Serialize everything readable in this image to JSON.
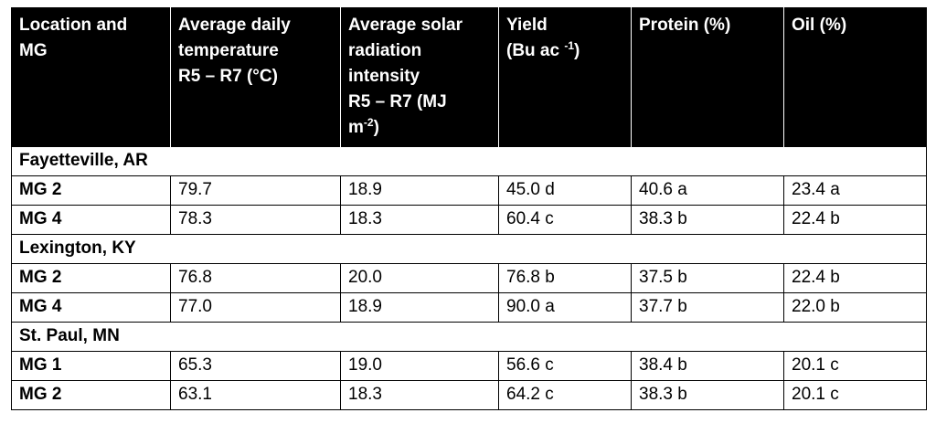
{
  "headers": {
    "location": [
      "Location and",
      "MG"
    ],
    "temperature": [
      "Average daily",
      "temperature",
      "R5 – R7 (°C)"
    ],
    "radiation": [
      "Average solar",
      "radiation",
      "intensity",
      "R5 – R7 (MJ",
      "m",
      "-2",
      ")"
    ],
    "yield": [
      "Yield",
      "(Bu ac ",
      "-1",
      ")"
    ],
    "protein": "Protein (%)",
    "oil": "Oil (%)"
  },
  "groups": [
    {
      "location": "Fayetteville, AR",
      "rows": [
        {
          "mg": "MG 2",
          "temperature": "79.7",
          "radiation": "18.9",
          "yield": "45.0 d",
          "protein": "40.6 a",
          "oil": "23.4 a"
        },
        {
          "mg": "MG 4",
          "temperature": "78.3",
          "radiation": "18.3",
          "yield": "60.4 c",
          "protein": "38.3 b",
          "oil": "22.4 b"
        }
      ]
    },
    {
      "location": "Lexington, KY",
      "rows": [
        {
          "mg": "MG 2",
          "temperature": "76.8",
          "radiation": "20.0",
          "yield": "76.8 b",
          "protein": "37.5 b",
          "oil": "22.4 b"
        },
        {
          "mg": "MG 4",
          "temperature": "77.0",
          "radiation": "18.9",
          "yield": "90.0 a",
          "protein": "37.7 b",
          "oil": "22.0 b"
        }
      ]
    },
    {
      "location": "St. Paul, MN",
      "rows": [
        {
          "mg": "MG 1",
          "temperature": "65.3",
          "radiation": "19.0",
          "yield": "56.6 c",
          "protein": "38.4 b",
          "oil": "20.1 c"
        },
        {
          "mg": "MG 2",
          "temperature": "63.1",
          "radiation": "18.3",
          "yield": "64.2 c",
          "protein": "38.3 b",
          "oil": "20.1 c"
        }
      ]
    }
  ]
}
